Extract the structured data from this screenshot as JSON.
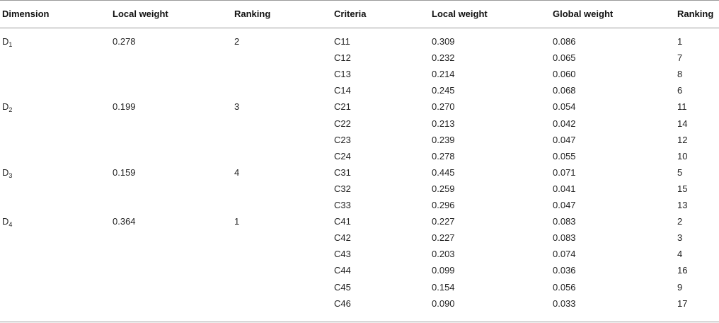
{
  "table": {
    "headers": [
      "Dimension",
      "Local weight",
      "Ranking",
      "Criteria",
      "Local weight",
      "Global weight",
      "Ranking"
    ],
    "dimensions": [
      {
        "base": "D",
        "sub": "1",
        "local_weight": "0.278",
        "ranking": "2"
      },
      {
        "base": "D",
        "sub": "2",
        "local_weight": "0.199",
        "ranking": "3"
      },
      {
        "base": "D",
        "sub": "3",
        "local_weight": "0.159",
        "ranking": "4"
      },
      {
        "base": "D",
        "sub": "4",
        "local_weight": "0.364",
        "ranking": "1"
      }
    ],
    "criteria": [
      {
        "id": "C11",
        "local_weight": "0.309",
        "global_weight": "0.086",
        "ranking": "1"
      },
      {
        "id": "C12",
        "local_weight": "0.232",
        "global_weight": "0.065",
        "ranking": "7"
      },
      {
        "id": "C13",
        "local_weight": "0.214",
        "global_weight": "0.060",
        "ranking": "8"
      },
      {
        "id": "C14",
        "local_weight": "0.245",
        "global_weight": "0.068",
        "ranking": "6"
      },
      {
        "id": "C21",
        "local_weight": "0.270",
        "global_weight": "0.054",
        "ranking": "11"
      },
      {
        "id": "C22",
        "local_weight": "0.213",
        "global_weight": "0.042",
        "ranking": "14"
      },
      {
        "id": "C23",
        "local_weight": "0.239",
        "global_weight": "0.047",
        "ranking": "12"
      },
      {
        "id": "C24",
        "local_weight": "0.278",
        "global_weight": "0.055",
        "ranking": "10"
      },
      {
        "id": "C31",
        "local_weight": "0.445",
        "global_weight": "0.071",
        "ranking": "5"
      },
      {
        "id": "C32",
        "local_weight": "0.259",
        "global_weight": "0.041",
        "ranking": "15"
      },
      {
        "id": "C33",
        "local_weight": "0.296",
        "global_weight": "0.047",
        "ranking": "13"
      },
      {
        "id": "C41",
        "local_weight": "0.227",
        "global_weight": "0.083",
        "ranking": "2"
      },
      {
        "id": "C42",
        "local_weight": "0.227",
        "global_weight": "0.083",
        "ranking": "3"
      },
      {
        "id": "C43",
        "local_weight": "0.203",
        "global_weight": "0.074",
        "ranking": "4"
      },
      {
        "id": "C44",
        "local_weight": "0.099",
        "global_weight": "0.036",
        "ranking": "16"
      },
      {
        "id": "C45",
        "local_weight": "0.154",
        "global_weight": "0.056",
        "ranking": "9"
      },
      {
        "id": "C46",
        "local_weight": "0.090",
        "global_weight": "0.033",
        "ranking": "17"
      }
    ]
  }
}
